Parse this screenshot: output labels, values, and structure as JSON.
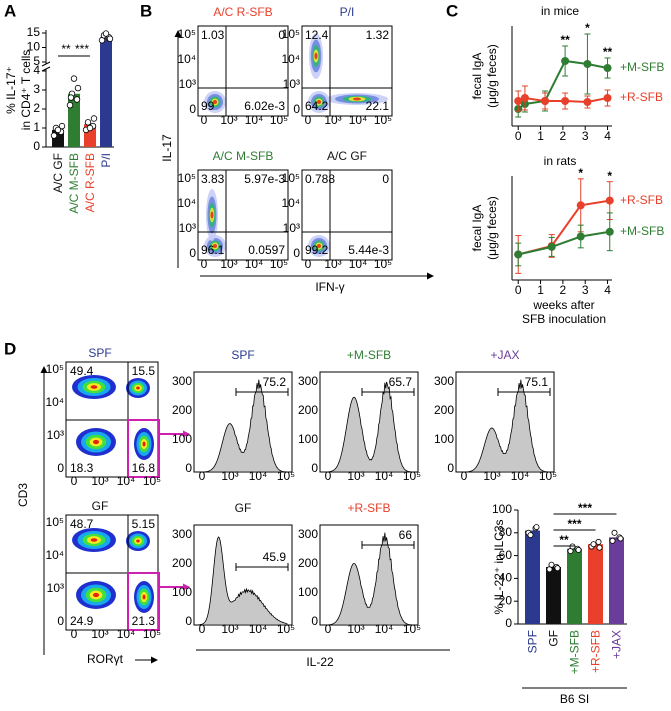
{
  "panel_labels": [
    "A",
    "B",
    "C",
    "D"
  ],
  "chart_data": [
    {
      "type": "bar",
      "ylabel": [
        "% IL-17⁺",
        "in CD4⁺ T cells"
      ],
      "categories": [
        "A/C GF",
        "A/C M-SFB",
        "A/C R-SFB",
        "P/I"
      ],
      "values": [
        0.9,
        2.8,
        1.2,
        13.5
      ],
      "points": [
        [
          0.6,
          0.8,
          1.0,
          1.1,
          0.9
        ],
        [
          2.2,
          2.5,
          2.8,
          3.1,
          3.6,
          2.6
        ],
        [
          0.9,
          1.1,
          1.3,
          1.5,
          1.0
        ],
        [
          12.5,
          13.5,
          14.2,
          13.0,
          14.8
        ]
      ],
      "colors": [
        "#111111",
        "#2e7d32",
        "#e8402a",
        "#2b3a8f"
      ],
      "ylim": [
        0,
        15
      ],
      "yticks": [
        0,
        1,
        2,
        3,
        4,
        5,
        10,
        15
      ],
      "significance": [
        "**",
        "***"
      ]
    },
    {
      "type": "line",
      "title": "in mice",
      "ylabel": [
        "fecal IgA",
        "(μg/g feces)"
      ],
      "x": [
        0,
        0.3,
        1.2,
        2.1,
        3.1,
        4
      ],
      "xlim": [
        -0.1,
        4.2
      ],
      "xticks": [
        0,
        1,
        2,
        3,
        4
      ],
      "ylim": [
        0,
        100
      ],
      "series": [
        {
          "name": "+M-SFB",
          "color": "#2e7d32",
          "values": [
            17,
            22,
            25,
            65,
            62,
            58
          ],
          "errors": [
            8,
            8,
            10,
            15,
            30,
            10
          ]
        },
        {
          "name": "+R-SFB",
          "color": "#e8402a",
          "values": [
            25,
            28,
            25,
            25,
            24,
            28
          ],
          "errors": [
            10,
            12,
            8,
            8,
            6,
            8
          ]
        }
      ],
      "annotations": [
        null,
        null,
        null,
        "**",
        "*",
        "**"
      ]
    },
    {
      "type": "line",
      "title": "in rats",
      "ylabel": [
        "fecal IgA",
        "(μg/g feces)"
      ],
      "xlabel": [
        "weeks after",
        "SFB inoculation"
      ],
      "x": [
        0,
        1.5,
        2.8,
        4.1
      ],
      "xlim": [
        -0.1,
        4.2
      ],
      "xticks": [
        0,
        1,
        2,
        3,
        4
      ],
      "ylim": [
        0,
        110
      ],
      "series": [
        {
          "name": "+R-SFB",
          "color": "#e8402a",
          "values": [
            27,
            36,
            79,
            84
          ],
          "errors": [
            20,
            12,
            28,
            20
          ]
        },
        {
          "name": "+M-SFB",
          "color": "#2e7d32",
          "values": [
            27,
            35,
            46,
            51
          ],
          "errors": [
            12,
            10,
            12,
            20
          ]
        }
      ],
      "annotations": [
        null,
        null,
        "*",
        "*"
      ]
    },
    {
      "type": "bar",
      "ylabel": "% IL-22⁺ in ILC3s",
      "group_label": "B6 SI",
      "categories": [
        "SPF",
        "GF",
        "+M-SFB",
        "+R-SFB",
        "+JAX"
      ],
      "values": [
        82,
        50,
        66,
        70,
        76
      ],
      "points": [
        [
          80,
          84,
          78,
          85
        ],
        [
          48,
          50,
          52,
          49
        ],
        [
          64,
          66,
          68,
          65
        ],
        [
          68,
          72,
          70,
          67
        ],
        [
          73,
          76,
          80,
          75
        ]
      ],
      "colors": [
        "#2b3a8f",
        "#111111",
        "#2e7d32",
        "#e8402a",
        "#6a3d9a"
      ],
      "ylim": [
        0,
        100
      ],
      "yticks": [
        0,
        20,
        40,
        60,
        80,
        100
      ],
      "significance": [
        "**",
        "***",
        "***"
      ]
    }
  ],
  "flow_b": {
    "ylabel": "IL-17",
    "xlabel": "IFN-γ",
    "ticks": [
      "0",
      "10³",
      "10⁴",
      "10⁵"
    ],
    "plots": [
      {
        "title": "A/C R-SFB",
        "color": "#e8402a",
        "quadrants": [
          "1.03",
          "0",
          "99",
          "6.02e-3"
        ]
      },
      {
        "title": "P/I",
        "color": "#2b3a8f",
        "quadrants": [
          "12.4",
          "1.32",
          "64.2",
          "22.1"
        ]
      },
      {
        "title": "A/C M-SFB",
        "color": "#2e7d32",
        "quadrants": [
          "3.83",
          "5.97e-3",
          "96.1",
          "0.0597"
        ]
      },
      {
        "title": "A/C GF",
        "color": "#111111",
        "quadrants": [
          "0.788",
          "0",
          "99.2",
          "5.44e-3"
        ]
      }
    ]
  },
  "flow_d": {
    "ylabel": "CD3",
    "xlabel": "RORγt",
    "ticks": [
      "0",
      "10³",
      "10⁴",
      "10⁵"
    ],
    "density_plots": [
      {
        "title": "SPF",
        "color": "#2b3a8f",
        "quadrants": [
          "49.4",
          "15.5",
          "18.3",
          "16.8"
        ]
      },
      {
        "title": "GF",
        "color": "#111111",
        "quadrants": [
          "48.7",
          "5.15",
          "24.9",
          "21.3"
        ]
      }
    ],
    "hist_xlabel": "IL-22",
    "hist_yticks": [
      "0",
      "100",
      "200",
      "300"
    ],
    "histograms": [
      {
        "title": "SPF",
        "color": "#2b3a8f",
        "gate": "75.2"
      },
      {
        "title": "+M-SFB",
        "color": "#2e7d32",
        "gate": "65.7"
      },
      {
        "title": "+JAX",
        "color": "#6a3d9a",
        "gate": "75.1"
      },
      {
        "title": "GF",
        "color": "#111111",
        "gate": "45.9"
      },
      {
        "title": "+R-SFB",
        "color": "#e8402a",
        "gate": "66"
      }
    ]
  }
}
